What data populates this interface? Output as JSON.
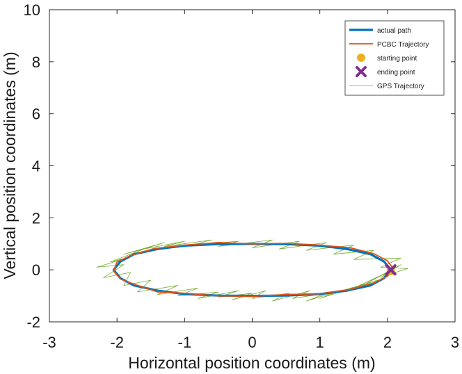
{
  "chart_data": {
    "type": "line",
    "title": "",
    "xlabel": "Horizontal position coordinates (m)",
    "ylabel": "Vertical position coordinates (m)",
    "xlim": [
      -3,
      3
    ],
    "ylim": [
      -2,
      10
    ],
    "xticks": [
      "-3",
      "-2",
      "-1",
      "0",
      "1",
      "2",
      "3"
    ],
    "yticks": [
      "-2",
      "0",
      "2",
      "4",
      "6",
      "8",
      "10"
    ],
    "grid": false,
    "legend_position": "top-right",
    "series": [
      {
        "name": "actual path",
        "kind": "line",
        "color": "#0072BD",
        "x": [
          2.05,
          1.95,
          1.75,
          1.4,
          1.0,
          0.5,
          0.0,
          -0.5,
          -1.0,
          -1.4,
          -1.75,
          -1.95,
          -2.05,
          -1.95,
          -1.75,
          -1.4,
          -1.0,
          -0.5,
          0.0,
          0.5,
          1.0,
          1.4,
          1.75,
          1.95,
          2.05
        ],
        "y": [
          0.0,
          0.32,
          0.6,
          0.8,
          0.93,
          0.99,
          1.0,
          0.99,
          0.93,
          0.8,
          0.6,
          0.32,
          0.0,
          -0.32,
          -0.6,
          -0.8,
          -0.93,
          -0.99,
          -1.0,
          -0.99,
          -0.93,
          -0.8,
          -0.6,
          -0.32,
          0.0
        ]
      },
      {
        "name": "PCBC Trajectory",
        "kind": "line",
        "color": "#D95319",
        "x": [
          2.1,
          2.0,
          1.8,
          1.45,
          1.0,
          0.5,
          0.0,
          -0.5,
          -1.0,
          -1.45,
          -1.8,
          -2.0,
          -2.05,
          -1.95,
          -1.75,
          -1.4,
          -1.0,
          -0.5,
          0.0,
          0.5,
          1.0,
          1.45,
          1.8,
          2.0,
          2.1,
          2.05
        ],
        "y": [
          0.0,
          0.35,
          0.62,
          0.85,
          0.95,
          1.02,
          1.0,
          1.05,
          0.95,
          0.82,
          0.55,
          0.3,
          -0.05,
          -0.35,
          -0.55,
          -0.85,
          -0.9,
          -1.0,
          -1.02,
          -0.95,
          -0.92,
          -0.75,
          -0.5,
          -0.25,
          0.1,
          0.0
        ]
      },
      {
        "name": "starting point",
        "kind": "marker",
        "marker": "circle",
        "color": "#EDB120",
        "x": [
          2.05
        ],
        "y": [
          -0.05
        ]
      },
      {
        "name": "ending point",
        "kind": "marker",
        "marker": "x",
        "color": "#7E2F8E",
        "x": [
          2.05
        ],
        "y": [
          0.0
        ]
      },
      {
        "name": "GPS Trajectory",
        "kind": "line",
        "color": "#77AC30",
        "x": [
          2.1,
          1.9,
          2.2,
          1.7,
          2.0,
          1.5,
          1.85,
          1.2,
          1.6,
          1.0,
          1.3,
          0.8,
          1.1,
          0.6,
          0.85,
          0.3,
          0.55,
          0.0,
          0.2,
          -0.3,
          0.0,
          -0.5,
          -0.2,
          -0.8,
          -0.5,
          -1.1,
          -0.8,
          -1.4,
          -1.1,
          -1.7,
          -1.5,
          -1.9,
          -1.8,
          -2.2,
          -1.9,
          -2.3,
          -1.8,
          -2.1,
          -1.6,
          -1.9,
          -1.3,
          -1.6,
          -1.0,
          -1.3,
          -0.6,
          -0.9,
          -0.2,
          -0.5,
          0.3,
          0.0,
          0.7,
          0.4,
          1.1,
          0.8,
          1.5,
          1.2,
          1.8,
          1.5,
          2.2,
          1.9,
          2.3,
          2.0
        ],
        "y": [
          0.1,
          -0.3,
          0.2,
          -0.5,
          -0.1,
          -0.7,
          -0.4,
          -0.9,
          -0.6,
          -1.1,
          -0.8,
          -1.2,
          -0.9,
          -1.1,
          -0.8,
          -1.2,
          -0.9,
          -1.1,
          -0.8,
          -1.15,
          -0.9,
          -1.05,
          -0.8,
          -1.1,
          -0.85,
          -1.0,
          -0.7,
          -0.95,
          -0.6,
          -0.85,
          -0.4,
          -0.6,
          -0.1,
          -0.3,
          0.2,
          0.1,
          0.5,
          0.3,
          0.8,
          0.6,
          1.05,
          0.8,
          1.1,
          0.9,
          1.15,
          0.95,
          1.1,
          0.9,
          1.15,
          0.85,
          1.1,
          0.8,
          1.05,
          0.75,
          0.95,
          0.6,
          0.75,
          0.4,
          0.45,
          0.1,
          0.05,
          -0.2
        ]
      }
    ]
  }
}
